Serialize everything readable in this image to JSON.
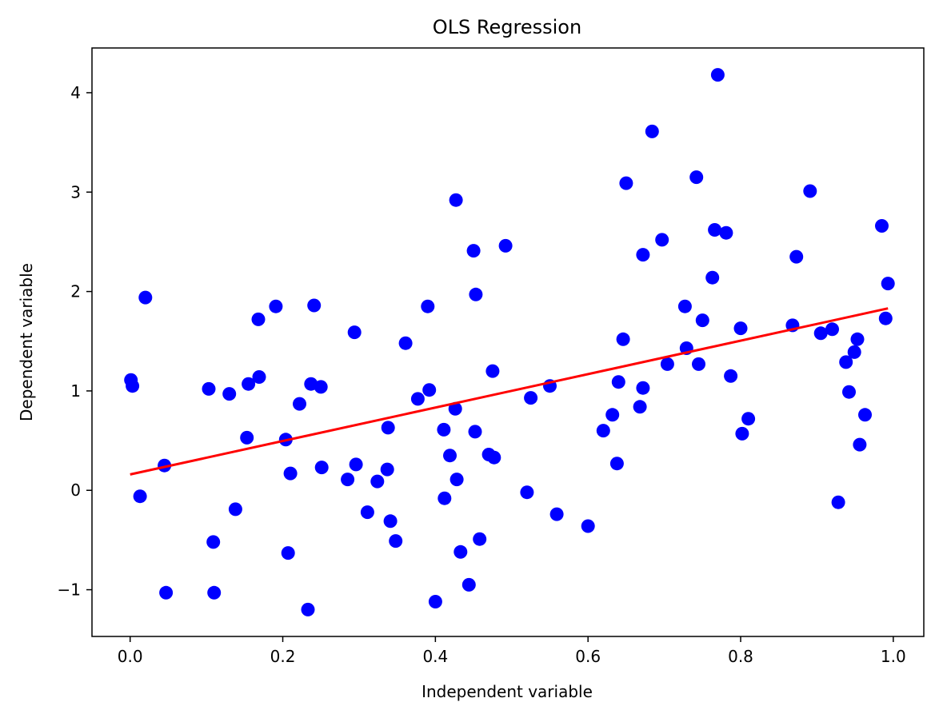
{
  "chart_data": {
    "type": "scatter",
    "title": "OLS Regression",
    "xlabel": "Independent variable",
    "ylabel": "Dependent variable",
    "xlim": [
      -0.05,
      1.04
    ],
    "ylim": [
      -1.47,
      4.45
    ],
    "x_ticks": [
      0.0,
      0.2,
      0.4,
      0.6,
      0.8,
      1.0
    ],
    "x_tick_labels": [
      "0.0",
      "0.2",
      "0.4",
      "0.6",
      "0.8",
      "1.0"
    ],
    "y_ticks": [
      -1,
      0,
      1,
      2,
      3,
      4
    ],
    "y_tick_labels": [
      "−1",
      "0",
      "1",
      "2",
      "3",
      "4"
    ],
    "grid": false,
    "colors": {
      "points": "#0000ff",
      "fit_line": "#ff0000"
    },
    "points": [
      [
        0.001,
        1.11
      ],
      [
        0.003,
        1.05
      ],
      [
        0.013,
        -0.06
      ],
      [
        0.02,
        1.94
      ],
      [
        0.045,
        0.25
      ],
      [
        0.047,
        -1.03
      ],
      [
        0.103,
        1.02
      ],
      [
        0.109,
        -0.52
      ],
      [
        0.11,
        -1.03
      ],
      [
        0.13,
        0.97
      ],
      [
        0.138,
        -0.19
      ],
      [
        0.153,
        0.53
      ],
      [
        0.155,
        1.07
      ],
      [
        0.168,
        1.72
      ],
      [
        0.169,
        1.14
      ],
      [
        0.191,
        1.85
      ],
      [
        0.204,
        0.51
      ],
      [
        0.207,
        -0.63
      ],
      [
        0.21,
        0.17
      ],
      [
        0.222,
        0.87
      ],
      [
        0.233,
        -1.2
      ],
      [
        0.237,
        1.07
      ],
      [
        0.241,
        1.86
      ],
      [
        0.25,
        1.04
      ],
      [
        0.251,
        0.23
      ],
      [
        0.285,
        0.11
      ],
      [
        0.294,
        1.59
      ],
      [
        0.296,
        0.26
      ],
      [
        0.311,
        -0.22
      ],
      [
        0.324,
        0.09
      ],
      [
        0.337,
        0.21
      ],
      [
        0.338,
        0.63
      ],
      [
        0.341,
        -0.31
      ],
      [
        0.348,
        -0.51
      ],
      [
        0.361,
        1.48
      ],
      [
        0.377,
        0.92
      ],
      [
        0.39,
        1.85
      ],
      [
        0.392,
        1.01
      ],
      [
        0.4,
        -1.12
      ],
      [
        0.411,
        0.61
      ],
      [
        0.412,
        -0.08
      ],
      [
        0.419,
        0.35
      ],
      [
        0.426,
        0.82
      ],
      [
        0.427,
        2.92
      ],
      [
        0.428,
        0.11
      ],
      [
        0.433,
        -0.62
      ],
      [
        0.444,
        -0.95
      ],
      [
        0.45,
        2.41
      ],
      [
        0.452,
        0.59
      ],
      [
        0.453,
        1.97
      ],
      [
        0.458,
        -0.49
      ],
      [
        0.47,
        0.36
      ],
      [
        0.475,
        1.2
      ],
      [
        0.477,
        0.33
      ],
      [
        0.492,
        2.46
      ],
      [
        0.52,
        -0.02
      ],
      [
        0.525,
        0.93
      ],
      [
        0.55,
        1.05
      ],
      [
        0.559,
        -0.24
      ],
      [
        0.6,
        -0.36
      ],
      [
        0.62,
        0.6
      ],
      [
        0.632,
        0.76
      ],
      [
        0.638,
        0.27
      ],
      [
        0.64,
        1.09
      ],
      [
        0.646,
        1.52
      ],
      [
        0.65,
        3.09
      ],
      [
        0.668,
        0.84
      ],
      [
        0.672,
        1.03
      ],
      [
        0.672,
        2.37
      ],
      [
        0.684,
        3.61
      ],
      [
        0.697,
        2.52
      ],
      [
        0.704,
        1.27
      ],
      [
        0.727,
        1.85
      ],
      [
        0.729,
        1.43
      ],
      [
        0.742,
        3.15
      ],
      [
        0.745,
        1.27
      ],
      [
        0.75,
        1.71
      ],
      [
        0.763,
        2.14
      ],
      [
        0.766,
        2.62
      ],
      [
        0.77,
        4.18
      ],
      [
        0.781,
        2.59
      ],
      [
        0.787,
        1.15
      ],
      [
        0.8,
        1.63
      ],
      [
        0.802,
        0.57
      ],
      [
        0.81,
        0.72
      ],
      [
        0.868,
        1.66
      ],
      [
        0.873,
        2.35
      ],
      [
        0.891,
        3.01
      ],
      [
        0.905,
        1.58
      ],
      [
        0.92,
        1.62
      ],
      [
        0.928,
        -0.12
      ],
      [
        0.938,
        1.29
      ],
      [
        0.942,
        0.99
      ],
      [
        0.949,
        1.39
      ],
      [
        0.953,
        1.52
      ],
      [
        0.956,
        0.46
      ],
      [
        0.963,
        0.76
      ],
      [
        0.985,
        2.66
      ],
      [
        0.99,
        1.73
      ],
      [
        0.993,
        2.08
      ]
    ],
    "fit_line": {
      "x": [
        0.0,
        0.993
      ],
      "y": [
        0.16,
        1.83
      ]
    }
  }
}
